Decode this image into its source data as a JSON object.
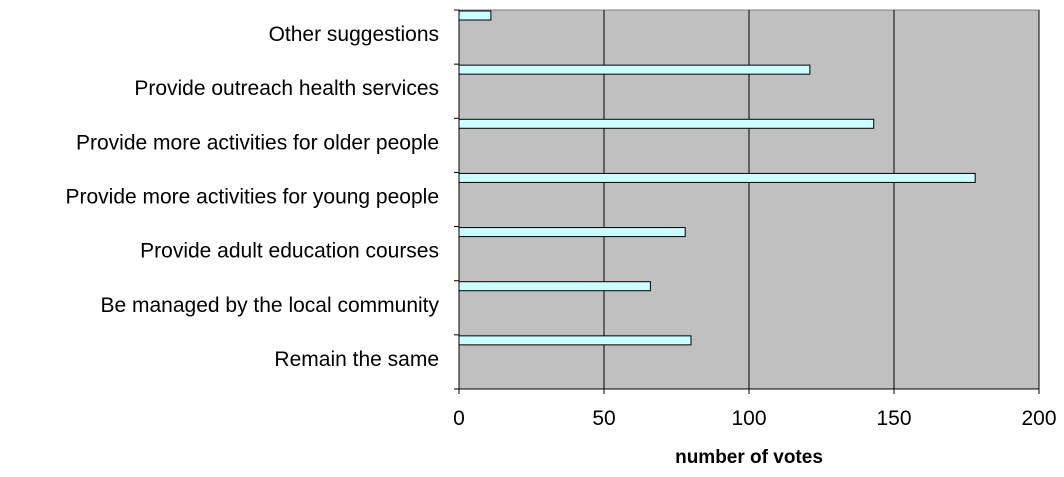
{
  "chart_data": {
    "type": "bar",
    "orientation": "horizontal",
    "categories": [
      "Other suggestions",
      "Provide outreach health services",
      "Provide more activities for older people",
      "Provide more activities for young people",
      "Provide adult education courses",
      "Be managed by the local community",
      "Remain the same"
    ],
    "values": [
      11,
      121,
      143,
      178,
      78,
      66,
      80
    ],
    "xlim": [
      0,
      200
    ],
    "xticks": [
      "0",
      "50",
      "100",
      "150",
      "200"
    ],
    "xlabel": "number of votes",
    "ylabel": "",
    "title": "",
    "grid": "vertical gridlines",
    "colors": {
      "plot_background": "#c0c0c0",
      "bar_fill": "#ccffff",
      "bar_stroke": "#000000",
      "gridline": "#000000"
    }
  }
}
